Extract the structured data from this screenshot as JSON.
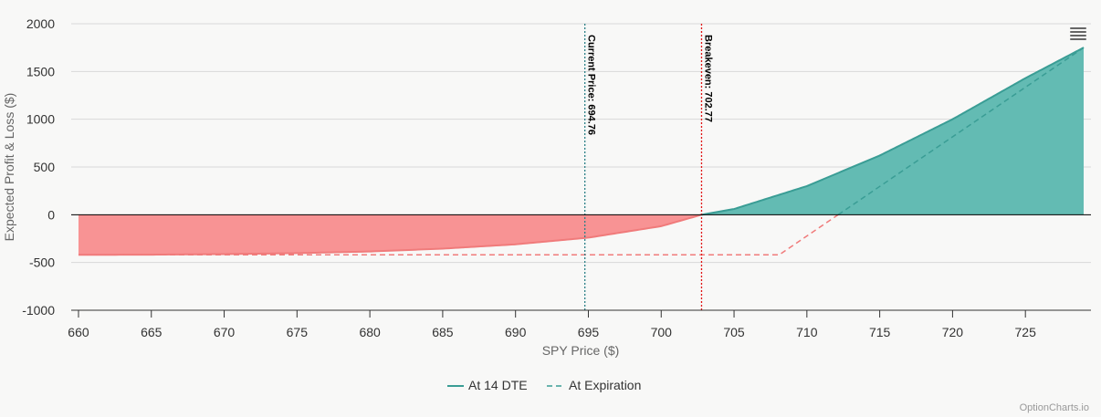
{
  "chart_data": {
    "type": "area",
    "xlabel": "SPY Price ($)",
    "ylabel": "Expected Profit & Loss ($)",
    "xlim": [
      659.5,
      729.5
    ],
    "ylim": [
      -1000,
      2000
    ],
    "x_ticks": [
      660,
      665,
      670,
      675,
      680,
      685,
      690,
      695,
      700,
      705,
      710,
      715,
      720,
      725
    ],
    "x_tick_labels": [
      "660",
      "665",
      "670",
      "675",
      "680",
      "685",
      "690",
      "695",
      "700",
      "705",
      "710",
      "715",
      "720",
      "725"
    ],
    "y_ticks": [
      -1000,
      -500,
      0,
      500,
      1000,
      1500,
      2000
    ],
    "y_tick_labels": [
      "-1000",
      "-500",
      "0",
      "500",
      "1000",
      "1500",
      "2000"
    ],
    "grid": true,
    "legend_position": "bottom-center",
    "series": [
      {
        "name": "At 14 DTE",
        "style": "solid",
        "x": [
          660,
          665,
          670,
          675,
          680,
          685,
          690,
          695,
          700,
          702.77,
          705,
          710,
          715,
          720,
          725,
          729
        ],
        "y": [
          -420,
          -418,
          -412,
          -402,
          -385,
          -355,
          -310,
          -240,
          -120,
          0,
          60,
          300,
          620,
          1000,
          1430,
          1750
        ]
      },
      {
        "name": "At Expiration",
        "style": "dashed",
        "x": [
          660,
          708.1,
          729
        ],
        "y": [
          -420,
          -420,
          1750
        ]
      }
    ],
    "reference_lines": [
      {
        "x": 694.76,
        "label": "Current Price: 694.76",
        "color": "#2a7f86",
        "style": "dotted"
      },
      {
        "x": 702.77,
        "label": "Breakeven: 702.77",
        "color": "#e01010",
        "style": "dotted"
      }
    ],
    "colors": {
      "profit_line": "#3a9d95",
      "profit_fill": "#63bbb3",
      "loss_line": "#f07b7b",
      "loss_fill": "#f89394",
      "zero_line": "#000000",
      "grid": "#d9d9d9",
      "axis": "#333333"
    }
  },
  "legend": {
    "items": [
      {
        "label": "At 14 DTE",
        "style": "solid",
        "color": "#3a9d95"
      },
      {
        "label": "At Expiration",
        "style": "dashed",
        "color": "#3a9d95"
      }
    ]
  },
  "menu": {
    "icon": "hamburger-menu-icon"
  },
  "credit": "OptionCharts.io"
}
